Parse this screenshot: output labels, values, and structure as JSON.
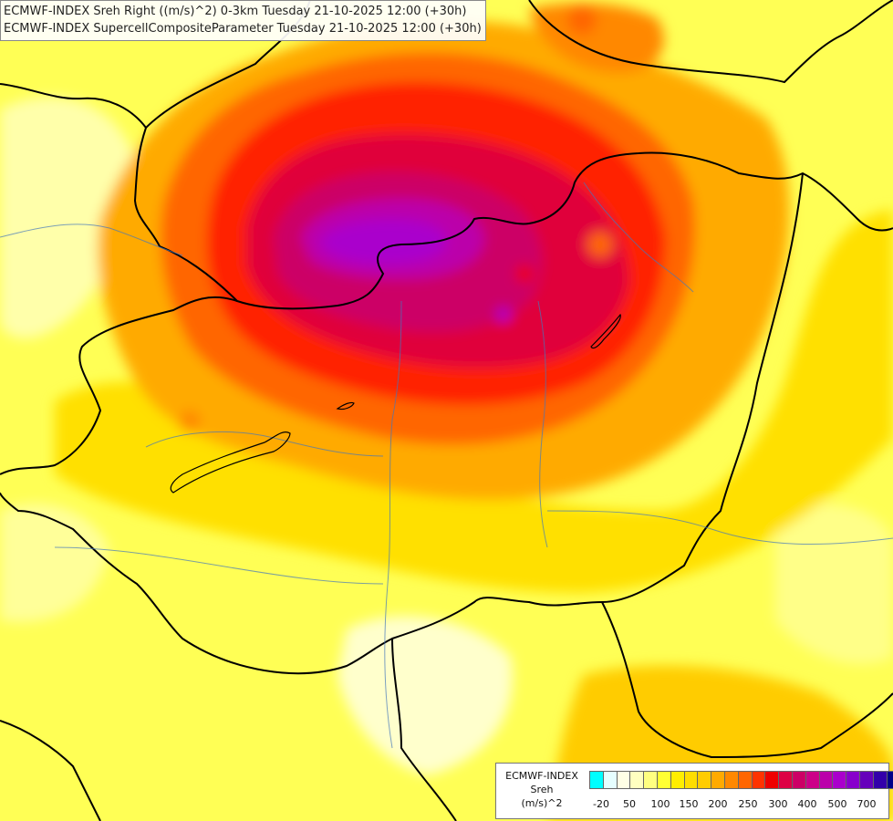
{
  "title": {
    "line1": "ECMWF-INDEX Sreh Right ((m/s)^2) 0-3km Tuesday 21-10-2025 12:00 (+30h)",
    "line2": "ECMWF-INDEX SupercellCompositeParameter Tuesday 21-10-2025 12:00 (+30h)"
  },
  "legend": {
    "model": "ECMWF-INDEX",
    "variable": "Sreh",
    "unit": "(m/s)^2",
    "colors": [
      "#00ffff",
      "#e6ffff",
      "#ffffe6",
      "#ffffc0",
      "#ffff80",
      "#ffff33",
      "#ffee00",
      "#ffdd00",
      "#ffcc00",
      "#ffaa00",
      "#ff8800",
      "#ff6600",
      "#ff3300",
      "#ee0000",
      "#dd0044",
      "#cc0066",
      "#cc0088",
      "#bb00aa",
      "#aa00cc",
      "#8800cc",
      "#6600bb",
      "#3300aa",
      "#000088"
    ],
    "tick_labels": [
      "-20",
      "50",
      "100",
      "150",
      "200",
      "250",
      "300",
      "400",
      "500",
      "700"
    ]
  }
}
